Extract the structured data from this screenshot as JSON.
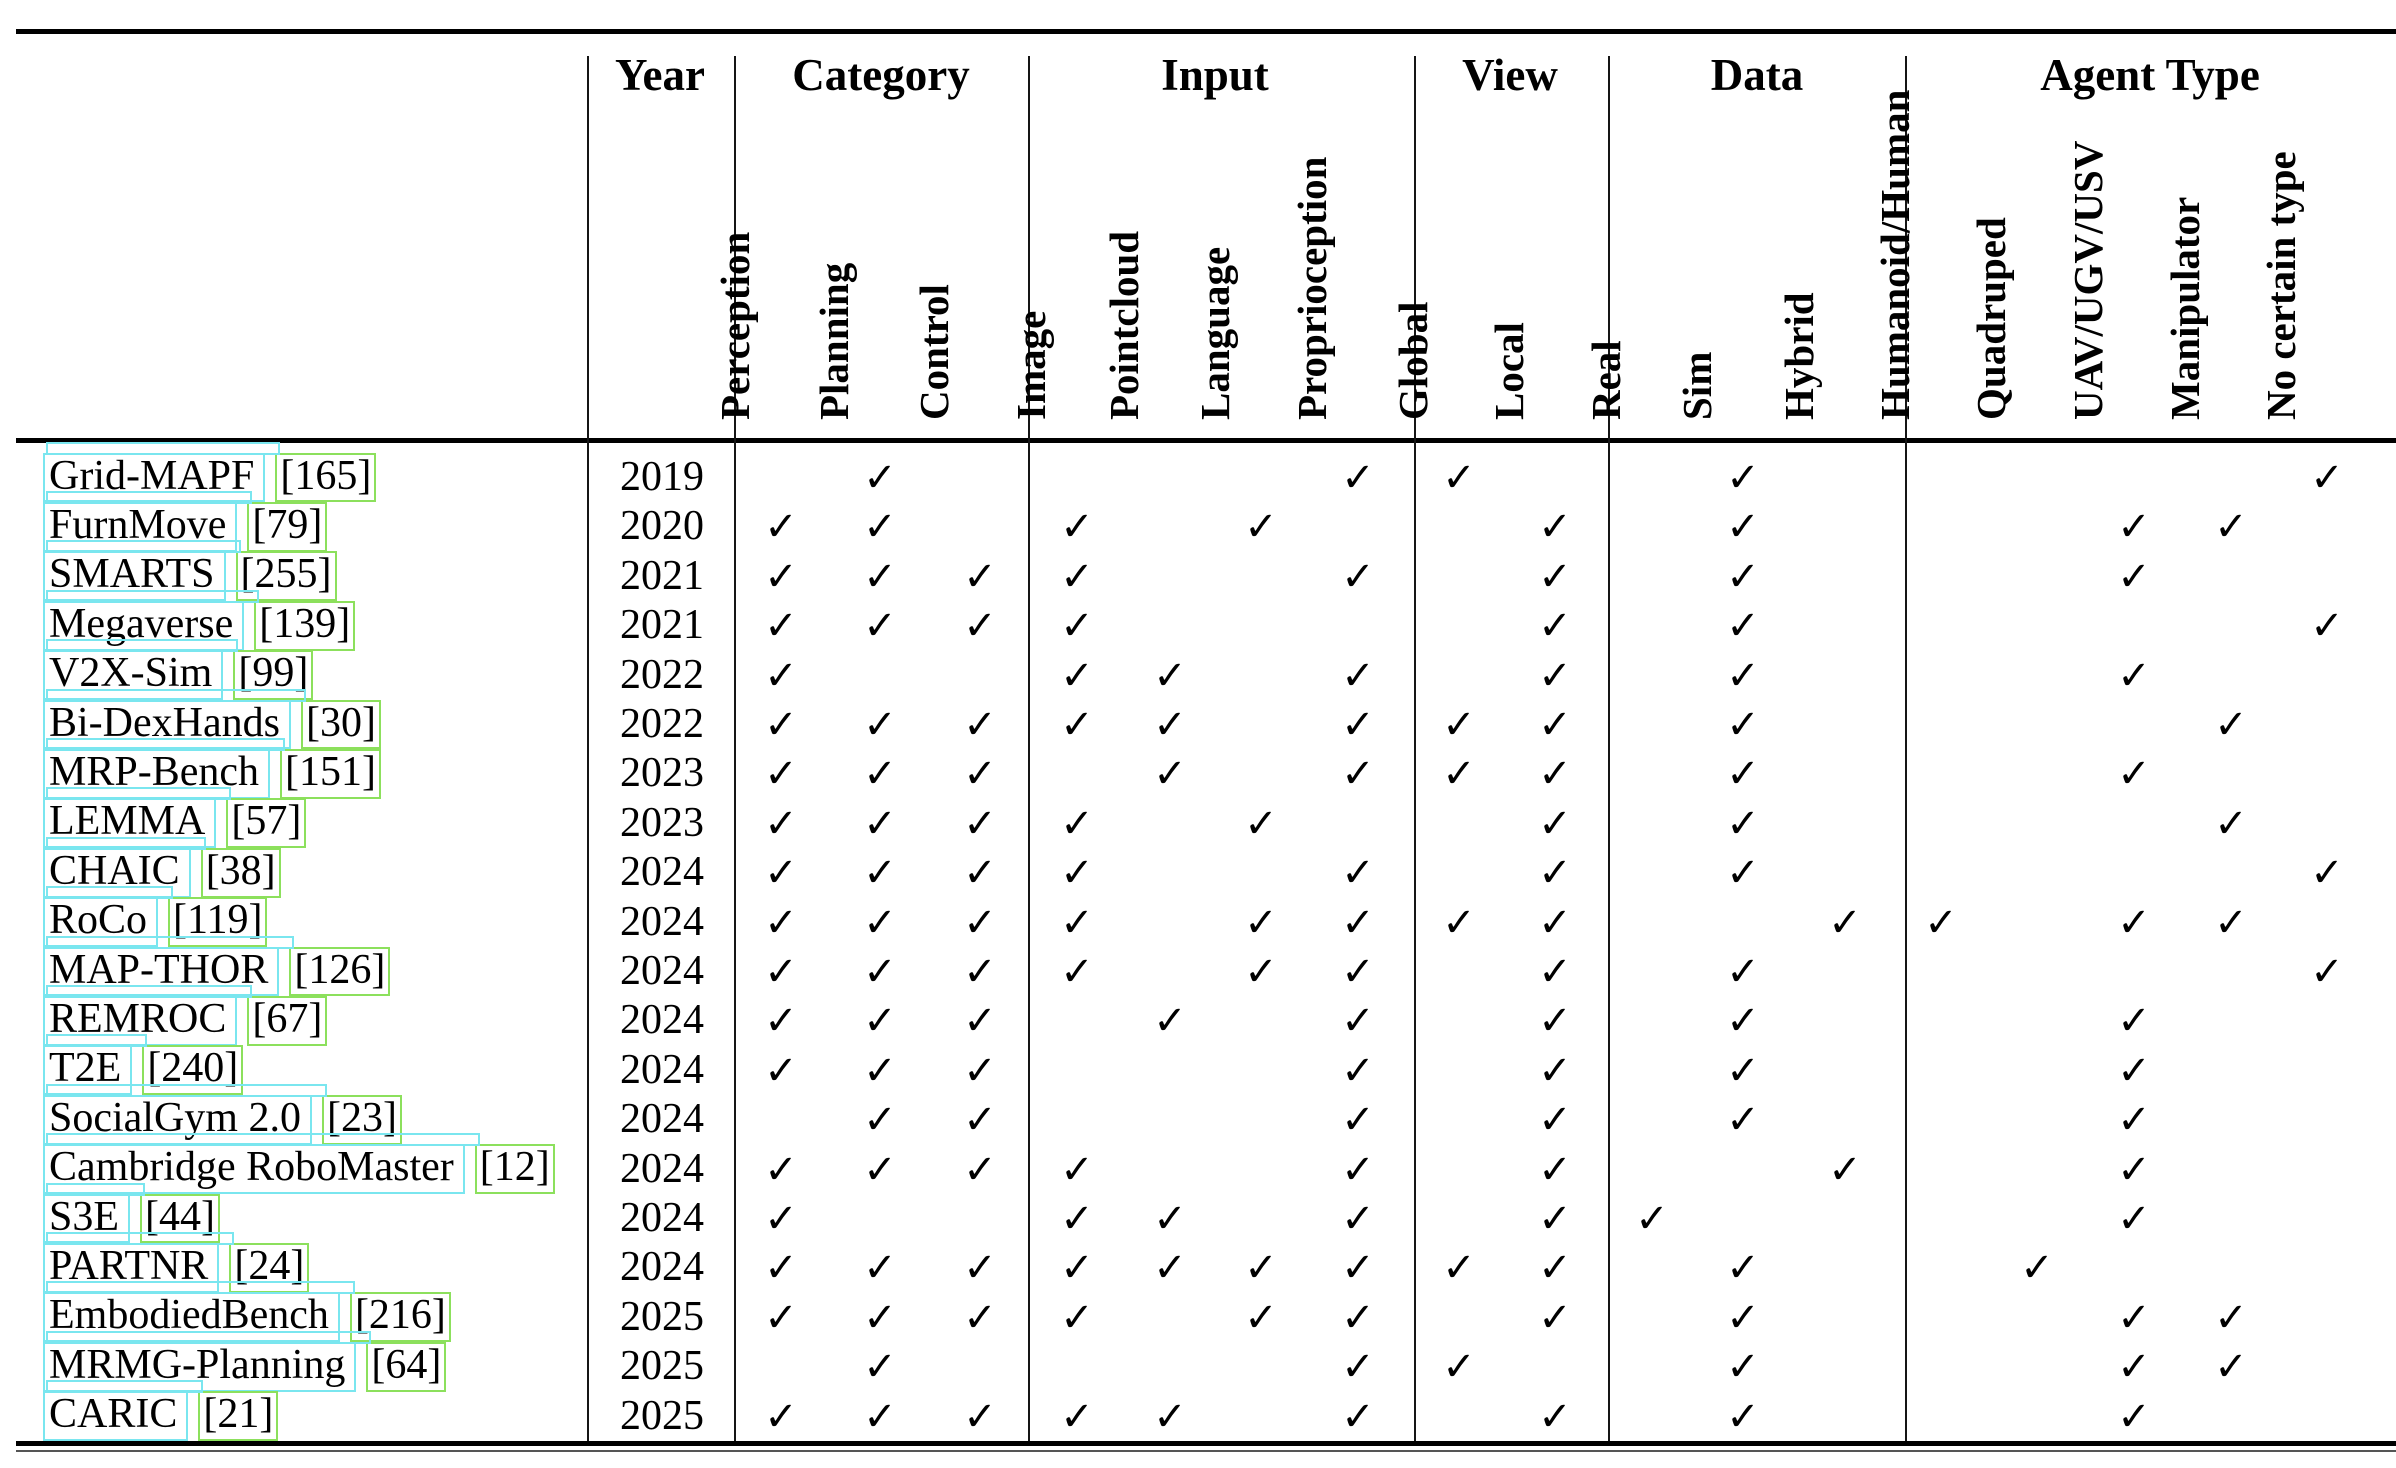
{
  "table": {
    "check_icon": "✓",
    "annotation_colors": {
      "name_box": "#7ae6ef",
      "citation_box": "#8ce05c"
    },
    "header_groups": [
      {
        "label": "Year",
        "columns": [
          "year"
        ]
      },
      {
        "label": "Category",
        "columns": [
          "perception",
          "planning",
          "control"
        ]
      },
      {
        "label": "Input",
        "columns": [
          "image",
          "pointcloud",
          "language",
          "proprioception"
        ]
      },
      {
        "label": "View",
        "columns": [
          "global",
          "local"
        ]
      },
      {
        "label": "Data",
        "columns": [
          "real",
          "sim",
          "hybrid"
        ]
      },
      {
        "label": "Agent Type",
        "columns": [
          "humanoid_human",
          "quadruped",
          "uav_ugv_usv",
          "manipulator",
          "no_certain_type"
        ]
      }
    ],
    "column_labels": {
      "perception": "Perception",
      "planning": "Planning",
      "control": "Control",
      "image": "Image",
      "pointcloud": "Pointcloud",
      "language": "Language",
      "proprioception": "Proprioception",
      "global": "Global",
      "local": "Local",
      "real": "Real",
      "sim": "Sim",
      "hybrid": "Hybrid",
      "humanoid_human": "Humanoid/Human",
      "quadruped": "Quadruped",
      "uav_ugv_usv": "UAV/UGV/USV",
      "manipulator": "Manipulator",
      "no_certain_type": "No certain type"
    },
    "rows": [
      {
        "name": "Grid-MAPF",
        "citation": "[165]",
        "year": "2019",
        "checks": [
          "planning",
          "proprioception",
          "global",
          "sim",
          "no_certain_type"
        ]
      },
      {
        "name": "FurnMove",
        "citation": "[79]",
        "year": "2020",
        "checks": [
          "perception",
          "planning",
          "image",
          "language",
          "local",
          "sim",
          "uav_ugv_usv",
          "manipulator"
        ]
      },
      {
        "name": "SMARTS",
        "citation": "[255]",
        "year": "2021",
        "checks": [
          "perception",
          "planning",
          "control",
          "image",
          "proprioception",
          "local",
          "sim",
          "uav_ugv_usv"
        ]
      },
      {
        "name": "Megaverse",
        "citation": "[139]",
        "year": "2021",
        "checks": [
          "perception",
          "planning",
          "control",
          "image",
          "local",
          "sim",
          "no_certain_type"
        ]
      },
      {
        "name": "V2X-Sim",
        "citation": "[99]",
        "year": "2022",
        "checks": [
          "perception",
          "image",
          "pointcloud",
          "proprioception",
          "local",
          "sim",
          "uav_ugv_usv"
        ]
      },
      {
        "name": "Bi-DexHands",
        "citation": "[30]",
        "year": "2022",
        "checks": [
          "perception",
          "planning",
          "control",
          "image",
          "pointcloud",
          "proprioception",
          "global",
          "local",
          "sim",
          "manipulator"
        ]
      },
      {
        "name": "MRP-Bench",
        "citation": "[151]",
        "year": "2023",
        "checks": [
          "perception",
          "planning",
          "control",
          "pointcloud",
          "proprioception",
          "global",
          "local",
          "sim",
          "uav_ugv_usv"
        ]
      },
      {
        "name": "LEMMA",
        "citation": "[57]",
        "year": "2023",
        "checks": [
          "perception",
          "planning",
          "control",
          "image",
          "language",
          "local",
          "sim",
          "manipulator"
        ]
      },
      {
        "name": "CHAIC",
        "citation": "[38]",
        "year": "2024",
        "checks": [
          "perception",
          "planning",
          "control",
          "image",
          "proprioception",
          "local",
          "sim",
          "no_certain_type"
        ]
      },
      {
        "name": "RoCo",
        "citation": "[119]",
        "year": "2024",
        "checks": [
          "perception",
          "planning",
          "control",
          "image",
          "language",
          "proprioception",
          "global",
          "local",
          "hybrid",
          "humanoid_human",
          "uav_ugv_usv",
          "manipulator"
        ]
      },
      {
        "name": "MAP-THOR",
        "citation": "[126]",
        "year": "2024",
        "checks": [
          "perception",
          "planning",
          "control",
          "image",
          "language",
          "proprioception",
          "local",
          "sim",
          "no_certain_type"
        ]
      },
      {
        "name": "REMROC",
        "citation": "[67]",
        "year": "2024",
        "checks": [
          "perception",
          "planning",
          "control",
          "pointcloud",
          "proprioception",
          "local",
          "sim",
          "uav_ugv_usv"
        ]
      },
      {
        "name": "T2E",
        "citation": "[240]",
        "year": "2024",
        "checks": [
          "perception",
          "planning",
          "control",
          "proprioception",
          "local",
          "sim",
          "uav_ugv_usv"
        ]
      },
      {
        "name": "SocialGym 2.0",
        "citation": "[23]",
        "year": "2024",
        "checks": [
          "planning",
          "control",
          "proprioception",
          "local",
          "sim",
          "uav_ugv_usv"
        ]
      },
      {
        "name": "Cambridge RoboMaster",
        "citation": "[12]",
        "year": "2024",
        "checks": [
          "perception",
          "planning",
          "control",
          "image",
          "proprioception",
          "local",
          "hybrid",
          "uav_ugv_usv"
        ]
      },
      {
        "name": "S3E",
        "citation": "[44]",
        "year": "2024",
        "checks": [
          "perception",
          "image",
          "pointcloud",
          "proprioception",
          "local",
          "real",
          "uav_ugv_usv"
        ]
      },
      {
        "name": "PARTNR",
        "citation": "[24]",
        "year": "2024",
        "checks": [
          "perception",
          "planning",
          "control",
          "image",
          "pointcloud",
          "language",
          "proprioception",
          "global",
          "local",
          "sim",
          "quadruped"
        ]
      },
      {
        "name": "EmbodiedBench",
        "citation": "[216]",
        "year": "2025",
        "checks": [
          "perception",
          "planning",
          "control",
          "image",
          "language",
          "proprioception",
          "local",
          "sim",
          "uav_ugv_usv",
          "manipulator"
        ]
      },
      {
        "name": "MRMG-Planning",
        "citation": "[64]",
        "year": "2025",
        "checks": [
          "planning",
          "proprioception",
          "global",
          "sim",
          "uav_ugv_usv",
          "manipulator"
        ]
      },
      {
        "name": "CARIC",
        "citation": "[21]",
        "year": "2025",
        "checks": [
          "perception",
          "planning",
          "control",
          "image",
          "pointcloud",
          "proprioception",
          "local",
          "sim",
          "uav_ugv_usv"
        ]
      }
    ]
  }
}
